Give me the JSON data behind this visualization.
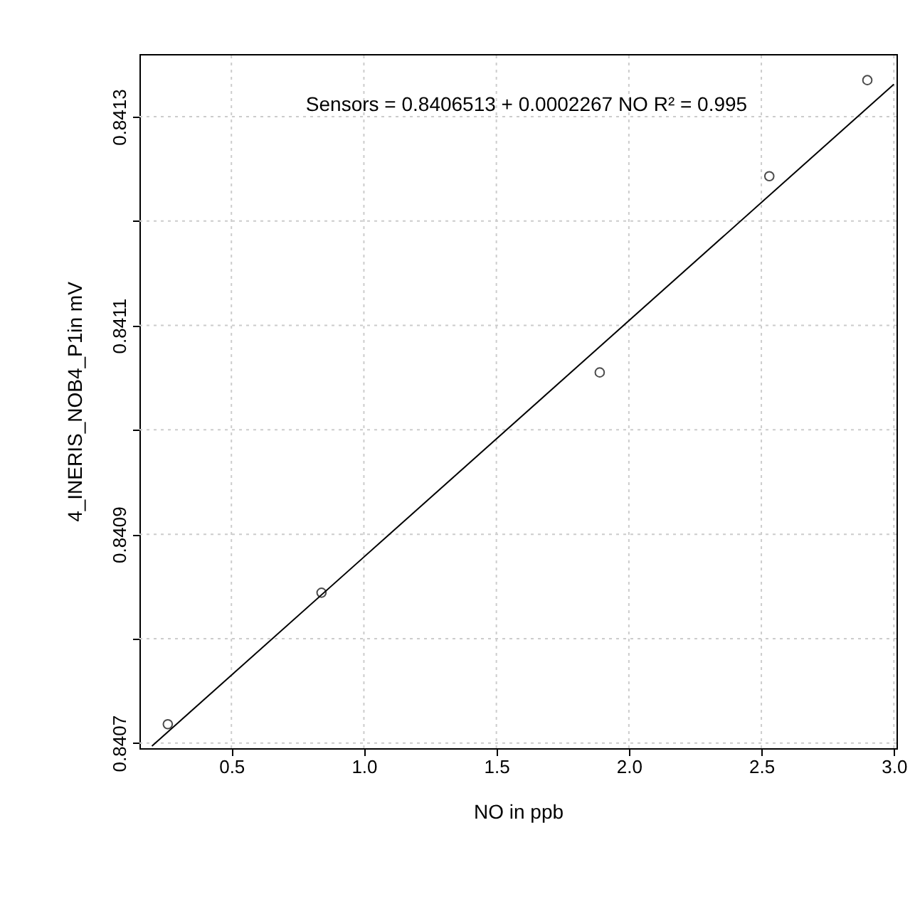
{
  "chart_data": {
    "type": "scatter",
    "xlabel": "NO in ppb",
    "ylabel": "4_INERIS_NOB4_P1in mV",
    "annotations": [
      "Sensors = 0.8406513 + 0.0002267 NO R² = 0.995"
    ],
    "series": [
      {
        "color": "#000000",
        "marker": "circle",
        "x": [
          0.26,
          0.84,
          1.89,
          2.53,
          2.9
        ],
        "values": [
          0.840718,
          0.840844,
          0.841055,
          0.841243,
          0.841335
        ]
      },
      {
        "type": "line",
        "color": "#000000",
        "line_style": "solid",
        "x": [
          0.2,
          3.0
        ],
        "values": [
          0.840697,
          0.841331
        ]
      }
    ],
    "xlim": [
      0.153,
      3.01
    ],
    "xticks": [
      0.5,
      {
        "value": 1,
        "label": "1.0"
      },
      1.5,
      {
        "value": 2,
        "label": "2.0"
      },
      2.5,
      {
        "value": 3,
        "label": "3.0"
      }
    ],
    "ylim": [
      0.840695,
      0.84136
    ],
    "yticks": [
      0.8407,
      {
        "value": 0.8408,
        "label": null
      },
      0.8409,
      {
        "value": 0.841,
        "label": null
      },
      0.8411,
      {
        "value": 0.8412,
        "label": null
      },
      0.8413
    ],
    "grid": true
  }
}
